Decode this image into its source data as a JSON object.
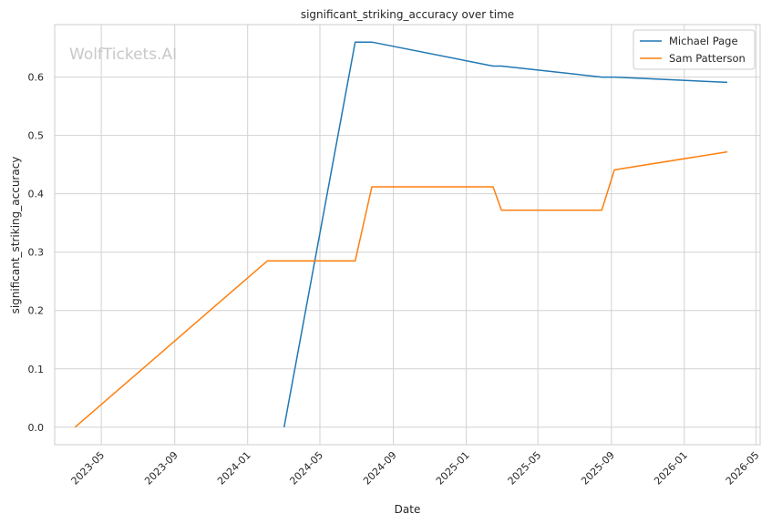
{
  "chart_data": {
    "type": "line",
    "title": "significant_striking_accuracy over time",
    "xlabel": "Date",
    "ylabel": "significant_striking_accuracy",
    "watermark": "WolfTickets.AI",
    "legend_position": "top-right",
    "grid": true,
    "xlim": [
      "2023-02-12",
      "2026-05-08"
    ],
    "ylim": [
      -0.03,
      0.69
    ],
    "x_ticks": [
      "2023-05-01",
      "2023-09-01",
      "2024-01-01",
      "2024-05-01",
      "2024-09-01",
      "2025-01-01",
      "2025-05-01",
      "2025-09-01",
      "2026-01-01",
      "2026-05-01"
    ],
    "x_tick_labels": [
      "2023-05",
      "2023-09",
      "2024-01",
      "2024-05",
      "2024-09",
      "2025-01",
      "2025-05",
      "2025-09",
      "2026-01",
      "2026-05"
    ],
    "y_ticks": [
      0.0,
      0.1,
      0.2,
      0.3,
      0.4,
      0.5,
      0.6
    ],
    "y_tick_labels": [
      "0.0",
      "0.1",
      "0.2",
      "0.3",
      "0.4",
      "0.5",
      "0.6"
    ],
    "series": [
      {
        "name": "Michael Page",
        "color": "#1f77b4",
        "x": [
          "2024-03-02",
          "2024-06-29",
          "2024-07-27",
          "2025-02-15",
          "2025-03-01",
          "2025-08-16",
          "2025-09-06",
          "2026-03-14"
        ],
        "y": [
          0.0,
          0.66,
          0.66,
          0.619,
          0.619,
          0.6,
          0.6,
          0.591
        ]
      },
      {
        "name": "Sam Patterson",
        "color": "#ff7f0e",
        "x": [
          "2023-03-18",
          "2024-02-03",
          "2024-06-29",
          "2024-07-27",
          "2025-02-15",
          "2025-03-01",
          "2025-08-16",
          "2025-09-06",
          "2026-03-14"
        ],
        "y": [
          0.0,
          0.285,
          0.285,
          0.412,
          0.412,
          0.372,
          0.372,
          0.441,
          0.472
        ]
      }
    ]
  }
}
